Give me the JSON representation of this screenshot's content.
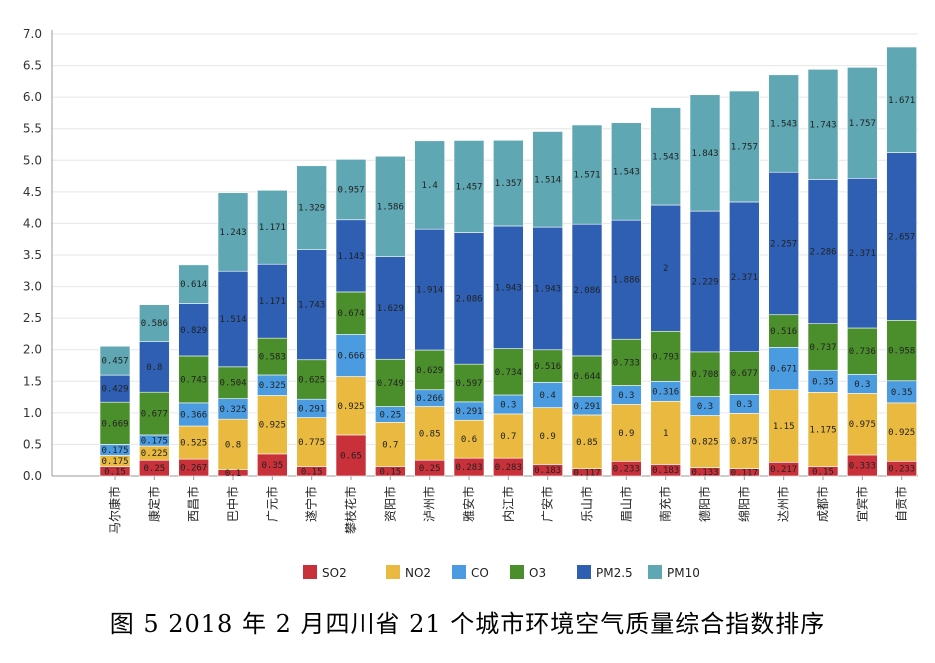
{
  "caption": "图 5   2018 年 2 月四川省 21 个城市环境空气质量综合指数排序",
  "chart_data": {
    "type": "bar",
    "stacked": true,
    "categories": [
      "马尔康市",
      "康定市",
      "西昌市",
      "巴中市",
      "广元市",
      "遂宁市",
      "攀枝花市",
      "资阳市",
      "泸州市",
      "雅安市",
      "内江市",
      "广安市",
      "乐山市",
      "眉山市",
      "南充市",
      "德阳市",
      "绵阳市",
      "达州市",
      "成都市",
      "宜宾市",
      "自贡市"
    ],
    "yticks": [
      "0.0",
      "0.5",
      "1.0",
      "1.5",
      "2.0",
      "2.5",
      "3.0",
      "3.5",
      "4.0",
      "4.5",
      "5.0",
      "5.5",
      "6.0",
      "6.5",
      "7.0"
    ],
    "ylim": [
      0,
      7.0
    ],
    "legend_position": "bottom",
    "series": [
      {
        "name": "SO2",
        "color": "#c8313a",
        "values": [
          0.15,
          0.25,
          0.267,
          0.1,
          0.35,
          0.15,
          0.65,
          0.15,
          0.25,
          0.283,
          0.283,
          0.183,
          0.117,
          0.233,
          0.183,
          0.133,
          0.117,
          0.217,
          0.15,
          0.333,
          0.233
        ],
        "labels": [
          "0.15",
          "0.25",
          "0.267",
          "0.1",
          "0.35",
          "0.15",
          "0.65",
          "0.15",
          "0.25",
          "0.283",
          "0.283",
          "0.183",
          "0.117",
          "0.233",
          "0.183",
          "0.133",
          "0.117",
          "0.217",
          "0.15",
          "0.333",
          "0.233"
        ]
      },
      {
        "name": "NO2",
        "color": "#e9b940",
        "values": [
          0.175,
          0.225,
          0.525,
          0.8,
          0.925,
          0.775,
          0.925,
          0.7,
          0.85,
          0.6,
          0.7,
          0.9,
          0.85,
          0.9,
          1,
          0.825,
          0.875,
          1.15,
          1.175,
          0.975,
          0.925
        ],
        "labels": [
          "0.175",
          "0.225",
          "0.525",
          "0.8",
          "0.925",
          "0.775",
          "0.925",
          "0.7",
          "0.85",
          "0.6",
          "0.7",
          "0.9",
          "0.85",
          "0.9",
          "1",
          "0.825",
          "0.875",
          "1.15",
          "1.175",
          "0.975",
          "0.925"
        ]
      },
      {
        "name": "CO",
        "color": "#4a9be0",
        "values": [
          0.175,
          0.175,
          0.366,
          0.325,
          0.325,
          0.291,
          0.666,
          0.25,
          0.266,
          0.291,
          0.3,
          0.4,
          0.291,
          0.3,
          0.316,
          0.3,
          0.3,
          0.671,
          0.35,
          0.3,
          0.35
        ],
        "labels": [
          "0.175",
          "0.175",
          "0.366",
          "0.325",
          "0.325",
          "0.291",
          "0.666",
          "0.25",
          "0.266",
          "0.291",
          "0.3",
          "0.4",
          "0.291",
          "0.3",
          "0.316",
          "0.3",
          "0.3",
          "0.671",
          "0.35",
          "0.3",
          "0.35"
        ]
      },
      {
        "name": "O3",
        "color": "#4b8f2c",
        "values": [
          0.669,
          0.677,
          0.743,
          0.504,
          0.583,
          0.625,
          0.674,
          0.749,
          0.629,
          0.597,
          0.734,
          0.516,
          0.644,
          0.733,
          0.793,
          0.708,
          0.677,
          0.516,
          0.737,
          0.736,
          0.958
        ],
        "labels": [
          "0.669",
          "0.677",
          "0.743",
          "0.504",
          "0.583",
          "0.625",
          "0.674",
          "0.749",
          "0.629",
          "0.597",
          "0.734",
          "0.516",
          "0.644",
          "0.733",
          "0.793",
          "0.708",
          "0.677",
          "0.516",
          "0.737",
          "0.736",
          "0.958"
        ]
      },
      {
        "name": "PM2.5",
        "color": "#2e5fb3",
        "values": [
          0.429,
          0.8,
          0.829,
          1.514,
          1.171,
          1.743,
          1.143,
          1.629,
          1.914,
          2.086,
          1.943,
          1.943,
          2.086,
          1.886,
          2,
          2.229,
          2.371,
          2.257,
          2.286,
          2.371,
          2.657
        ],
        "labels": [
          "0.429",
          "0.8",
          "0.829",
          "1.514",
          "1.171",
          "1.743",
          "1.143",
          "1.629",
          "1.914",
          "2.086",
          "1.943",
          "1.943",
          "2.086",
          "1.886",
          "2",
          "2.229",
          "2.371",
          "2.257",
          "2.286",
          "2.371",
          "2.657"
        ]
      },
      {
        "name": "PM10",
        "color": "#5ea7b3",
        "values": [
          0.457,
          0.586,
          0.614,
          1.243,
          1.171,
          1.329,
          0.957,
          1.586,
          1.4,
          1.457,
          1.357,
          1.514,
          1.571,
          1.543,
          1.543,
          1.843,
          1.757,
          1.543,
          1.743,
          1.757,
          1.671
        ],
        "labels": [
          "0.457",
          "0.586",
          "0.614",
          "1.243",
          "1.171",
          "1.329",
          "0.957",
          "1.586",
          "1.4",
          "1.457",
          "1.357",
          "1.514",
          "1.571",
          "1.543",
          "1.543",
          "1.843",
          "1.757",
          "1.543",
          "1.743",
          "1.757",
          "1.671"
        ]
      }
    ]
  }
}
